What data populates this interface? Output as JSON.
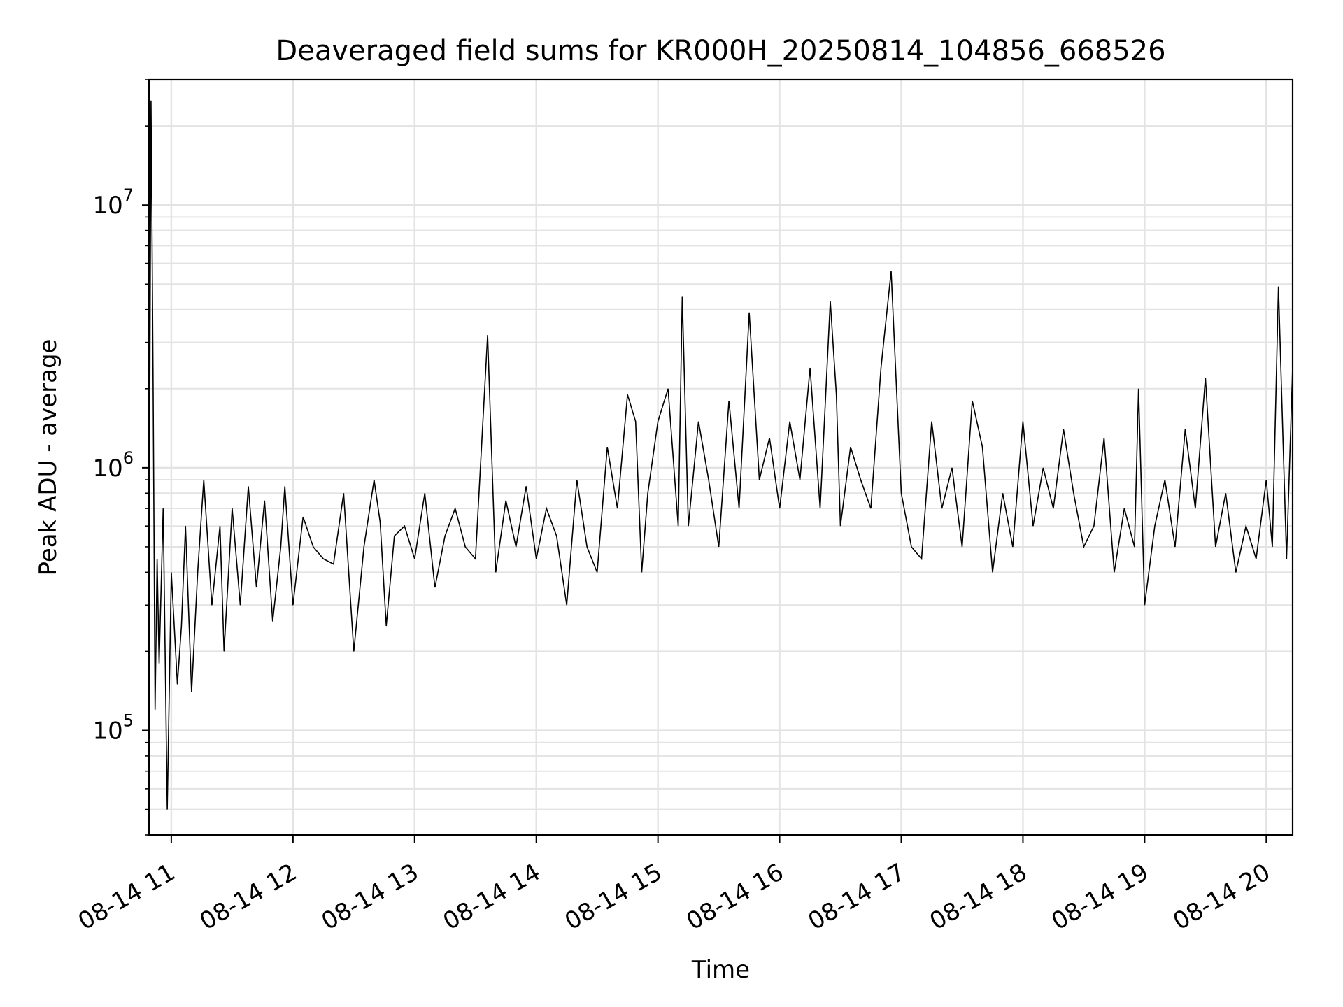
{
  "chart_data": {
    "type": "line",
    "title": "Deaveraged field sums for KR000H_20250814_104856_668526",
    "xlabel": "Time",
    "ylabel": "Peak ADU - average",
    "yscale": "log",
    "ylim": [
      40000,
      30000000
    ],
    "xlim": [
      "2025-08-14 10:49:00",
      "2025-08-14 20:13:00"
    ],
    "grid": true,
    "x_ticks": [
      "08-14 11",
      "08-14 12",
      "08-14 13",
      "08-14 14",
      "08-14 15",
      "08-14 16",
      "08-14 17",
      "08-14 18",
      "08-14 19",
      "08-14 20"
    ],
    "y_ticks": [
      {
        "base": "10",
        "exp": "5",
        "value": 100000
      },
      {
        "base": "10",
        "exp": "6",
        "value": 1000000
      },
      {
        "base": "10",
        "exp": "7",
        "value": 10000000
      }
    ],
    "line_color": "#000000",
    "series": [
      {
        "x": [
          "2025-08-14 10:49:00",
          "2025-08-14 10:50:00",
          "2025-08-14 10:51:00",
          "2025-08-14 10:52:00",
          "2025-08-14 10:53:00",
          "2025-08-14 10:54:00",
          "2025-08-14 10:56:00",
          "2025-08-14 10:58:00",
          "2025-08-14 11:00:00",
          "2025-08-14 11:03:00",
          "2025-08-14 11:05:00",
          "2025-08-14 11:07:00",
          "2025-08-14 11:10:00",
          "2025-08-14 11:13:00",
          "2025-08-14 11:16:00",
          "2025-08-14 11:20:00",
          "2025-08-14 11:24:00",
          "2025-08-14 11:26:00",
          "2025-08-14 11:30:00",
          "2025-08-14 11:34:00",
          "2025-08-14 11:38:00",
          "2025-08-14 11:42:00",
          "2025-08-14 11:46:00",
          "2025-08-14 11:50:00",
          "2025-08-14 11:54:00",
          "2025-08-14 11:56:00",
          "2025-08-14 12:00:00",
          "2025-08-14 12:05:00",
          "2025-08-14 12:10:00",
          "2025-08-14 12:15:00",
          "2025-08-14 12:20:00",
          "2025-08-14 12:25:00",
          "2025-08-14 12:30:00",
          "2025-08-14 12:35:00",
          "2025-08-14 12:40:00",
          "2025-08-14 12:43:00",
          "2025-08-14 12:46:00",
          "2025-08-14 12:50:00",
          "2025-08-14 12:55:00",
          "2025-08-14 13:00:00",
          "2025-08-14 13:05:00",
          "2025-08-14 13:10:00",
          "2025-08-14 13:15:00",
          "2025-08-14 13:20:00",
          "2025-08-14 13:25:00",
          "2025-08-14 13:30:00",
          "2025-08-14 13:36:00",
          "2025-08-14 13:40:00",
          "2025-08-14 13:45:00",
          "2025-08-14 13:50:00",
          "2025-08-14 13:55:00",
          "2025-08-14 14:00:00",
          "2025-08-14 14:05:00",
          "2025-08-14 14:10:00",
          "2025-08-14 14:15:00",
          "2025-08-14 14:20:00",
          "2025-08-14 14:25:00",
          "2025-08-14 14:30:00",
          "2025-08-14 14:35:00",
          "2025-08-14 14:40:00",
          "2025-08-14 14:45:00",
          "2025-08-14 14:49:00",
          "2025-08-14 14:52:00",
          "2025-08-14 14:55:00",
          "2025-08-14 15:00:00",
          "2025-08-14 15:05:00",
          "2025-08-14 15:10:00",
          "2025-08-14 15:12:00",
          "2025-08-14 15:15:00",
          "2025-08-14 15:20:00",
          "2025-08-14 15:25:00",
          "2025-08-14 15:30:00",
          "2025-08-14 15:35:00",
          "2025-08-14 15:40:00",
          "2025-08-14 15:45:00",
          "2025-08-14 15:50:00",
          "2025-08-14 15:55:00",
          "2025-08-14 16:00:00",
          "2025-08-14 16:05:00",
          "2025-08-14 16:10:00",
          "2025-08-14 16:15:00",
          "2025-08-14 16:20:00",
          "2025-08-14 16:25:00",
          "2025-08-14 16:28:00",
          "2025-08-14 16:30:00",
          "2025-08-14 16:35:00",
          "2025-08-14 16:40:00",
          "2025-08-14 16:45:00",
          "2025-08-14 16:50:00",
          "2025-08-14 16:55:00",
          "2025-08-14 17:00:00",
          "2025-08-14 17:05:00",
          "2025-08-14 17:10:00",
          "2025-08-14 17:15:00",
          "2025-08-14 17:20:00",
          "2025-08-14 17:25:00",
          "2025-08-14 17:30:00",
          "2025-08-14 17:35:00",
          "2025-08-14 17:40:00",
          "2025-08-14 17:45:00",
          "2025-08-14 17:50:00",
          "2025-08-14 17:55:00",
          "2025-08-14 18:00:00",
          "2025-08-14 18:05:00",
          "2025-08-14 18:10:00",
          "2025-08-14 18:15:00",
          "2025-08-14 18:20:00",
          "2025-08-14 18:25:00",
          "2025-08-14 18:30:00",
          "2025-08-14 18:35:00",
          "2025-08-14 18:40:00",
          "2025-08-14 18:45:00",
          "2025-08-14 18:50:00",
          "2025-08-14 18:55:00",
          "2025-08-14 18:57:00",
          "2025-08-14 19:00:00",
          "2025-08-14 19:05:00",
          "2025-08-14 19:10:00",
          "2025-08-14 19:15:00",
          "2025-08-14 19:20:00",
          "2025-08-14 19:25:00",
          "2025-08-14 19:30:00",
          "2025-08-14 19:35:00",
          "2025-08-14 19:40:00",
          "2025-08-14 19:45:00",
          "2025-08-14 19:50:00",
          "2025-08-14 19:55:00",
          "2025-08-14 20:00:00",
          "2025-08-14 20:03:00",
          "2025-08-14 20:06:00",
          "2025-08-14 20:10:00",
          "2025-08-14 20:13:00"
        ],
        "values": [
          350000,
          25000000,
          2300000,
          120000,
          450000,
          180000,
          700000,
          50000,
          400000,
          150000,
          250000,
          600000,
          140000,
          400000,
          900000,
          300000,
          600000,
          200000,
          700000,
          300000,
          850000,
          350000,
          750000,
          260000,
          500000,
          850000,
          300000,
          650000,
          500000,
          450000,
          430000,
          800000,
          200000,
          500000,
          900000,
          620000,
          250000,
          550000,
          600000,
          450000,
          800000,
          350000,
          550000,
          700000,
          500000,
          450000,
          3200000,
          400000,
          750000,
          500000,
          850000,
          450000,
          700000,
          550000,
          300000,
          900000,
          500000,
          400000,
          1200000,
          700000,
          1900000,
          1500000,
          400000,
          800000,
          1500000,
          2000000,
          600000,
          4500000,
          600000,
          1500000,
          900000,
          500000,
          1800000,
          700000,
          3900000,
          900000,
          1300000,
          700000,
          1500000,
          900000,
          2400000,
          700000,
          4300000,
          1900000,
          600000,
          1200000,
          900000,
          700000,
          2400000,
          5600000,
          800000,
          500000,
          450000,
          1500000,
          700000,
          1000000,
          500000,
          1800000,
          1200000,
          400000,
          800000,
          500000,
          1500000,
          600000,
          1000000,
          700000,
          1400000,
          800000,
          500000,
          600000,
          1300000,
          400000,
          700000,
          500000,
          2000000,
          300000,
          600000,
          900000,
          500000,
          1400000,
          700000,
          2200000,
          500000,
          800000,
          400000,
          600000,
          450000,
          900000,
          500000,
          4900000,
          450000,
          2400000
        ]
      }
    ]
  }
}
